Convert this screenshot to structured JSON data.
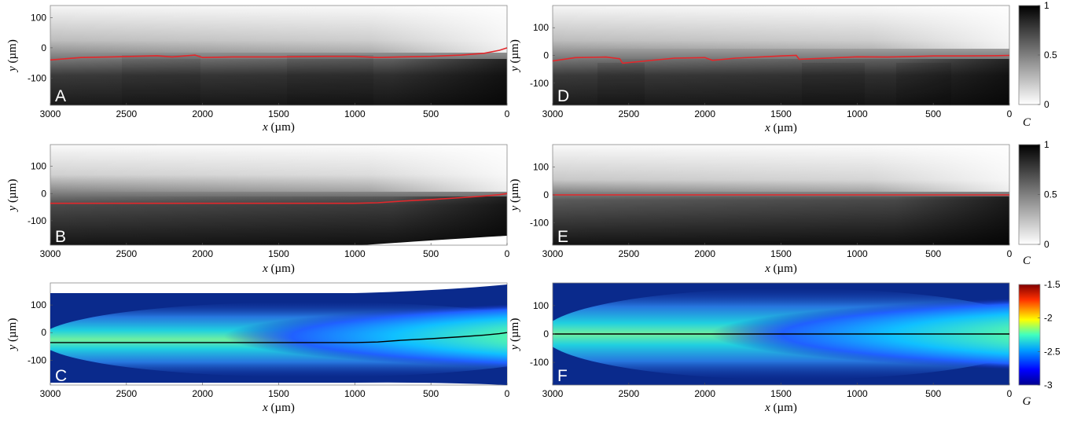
{
  "chart_data": [
    {
      "panel": "A",
      "type": "heatmap",
      "colormap": "gray",
      "xlabel_var": "x",
      "xlabel_unit": "(µm)",
      "ylabel_var": "y",
      "ylabel_unit": "(µm)",
      "xlim": [
        3000,
        0
      ],
      "ylim": [
        -190,
        140
      ],
      "xticks": [
        "3000",
        "2500",
        "2000",
        "1500",
        "1000",
        "500",
        "0"
      ],
      "yticks": [
        "100",
        "0",
        "-100"
      ],
      "curve_color": "#e3272b",
      "curve": {
        "x": [
          3000,
          2800,
          2600,
          2300,
          2200,
          2050,
          2000,
          1800,
          1500,
          1200,
          1000,
          850,
          700,
          500,
          300,
          150,
          50,
          0
        ],
        "y": [
          -40,
          -32,
          -30,
          -26,
          -30,
          -24,
          -32,
          -30,
          -30,
          -28,
          -28,
          -32,
          -30,
          -28,
          -24,
          -18,
          -8,
          0
        ]
      }
    },
    {
      "panel": "B",
      "type": "heatmap",
      "colormap": "gray",
      "xlabel_var": "x",
      "xlabel_unit": "(µm)",
      "ylabel_var": "y",
      "ylabel_unit": "(µm)",
      "xlim": [
        3000,
        0
      ],
      "ylim": [
        -190,
        180
      ],
      "xticks": [
        "3000",
        "2500",
        "2000",
        "1500",
        "1000",
        "500",
        "0"
      ],
      "yticks": [
        "100",
        "0",
        "-100"
      ],
      "curve_color": "#e3272b",
      "curve": {
        "x": [
          3000,
          2500,
          2000,
          1500,
          1000,
          850,
          700,
          500,
          300,
          150,
          50,
          0
        ],
        "y": [
          -36,
          -36,
          -36,
          -36,
          -36,
          -34,
          -28,
          -22,
          -15,
          -9,
          -4,
          0
        ]
      }
    },
    {
      "panel": "C",
      "type": "heatmap",
      "colormap": "jet",
      "xlabel_var": "x",
      "xlabel_unit": "(µm)",
      "ylabel_var": "y",
      "ylabel_unit": "(µm)",
      "xlim": [
        3000,
        0
      ],
      "ylim": [
        -190,
        180
      ],
      "xticks": [
        "3000",
        "2500",
        "2000",
        "1500",
        "1000",
        "500",
        "0"
      ],
      "yticks": [
        "100",
        "0",
        "-100"
      ],
      "curve_color": "#000000",
      "curve": {
        "x": [
          3000,
          2500,
          2000,
          1500,
          1000,
          850,
          700,
          500,
          300,
          150,
          50,
          0
        ],
        "y": [
          -36,
          -36,
          -36,
          -36,
          -36,
          -34,
          -28,
          -22,
          -15,
          -9,
          -4,
          0
        ]
      }
    },
    {
      "panel": "D",
      "type": "heatmap",
      "colormap": "gray",
      "xlabel_var": "x",
      "xlabel_unit": "(µm)",
      "ylabel_var": "y",
      "ylabel_unit": "(µm)",
      "xlim": [
        3000,
        0
      ],
      "ylim": [
        -180,
        180
      ],
      "xticks": [
        "3000",
        "2500",
        "2000",
        "1500",
        "1000",
        "500",
        "0"
      ],
      "yticks": [
        "100",
        "0",
        "-100"
      ],
      "curve_color": "#e3272b",
      "curve": {
        "x": [
          3000,
          2850,
          2650,
          2560,
          2540,
          2200,
          2000,
          1950,
          1800,
          1500,
          1400,
          1380,
          1000,
          800,
          500,
          300,
          100,
          0
        ],
        "y": [
          -20,
          -8,
          -6,
          -12,
          -28,
          -10,
          -8,
          -18,
          -10,
          -2,
          0,
          -14,
          -5,
          -6,
          -2,
          -2,
          -1,
          0
        ]
      }
    },
    {
      "panel": "E",
      "type": "heatmap",
      "colormap": "gray",
      "xlabel_var": "x",
      "xlabel_unit": "(µm)",
      "ylabel_var": "y",
      "ylabel_unit": "(µm)",
      "xlim": [
        3000,
        0
      ],
      "ylim": [
        -180,
        180
      ],
      "xticks": [
        "3000",
        "2500",
        "2000",
        "1500",
        "1000",
        "500",
        "0"
      ],
      "yticks": [
        "100",
        "0",
        "-100"
      ],
      "curve_color": "#e3272b",
      "curve": {
        "x": [
          3000,
          0
        ],
        "y": [
          0,
          0
        ]
      }
    },
    {
      "panel": "F",
      "type": "heatmap",
      "colormap": "jet",
      "xlabel_var": "x",
      "xlabel_unit": "(µm)",
      "ylabel_var": "y",
      "ylabel_unit": "(µm)",
      "xlim": [
        3000,
        0
      ],
      "ylim": [
        -180,
        180
      ],
      "xticks": [
        "3000",
        "2500",
        "2000",
        "1500",
        "1000",
        "500",
        "0"
      ],
      "yticks": [
        "100",
        "0",
        "-100"
      ],
      "curve_color": "#000000",
      "curve": {
        "x": [
          3000,
          0
        ],
        "y": [
          0,
          0
        ]
      }
    }
  ],
  "colorbars": [
    {
      "id": "cb-gray-1",
      "colormap": "gray",
      "range": [
        0,
        1
      ],
      "ticks": [
        "1",
        "0.5",
        "0"
      ],
      "label": "C"
    },
    {
      "id": "cb-gray-2",
      "colormap": "gray",
      "range": [
        0,
        1
      ],
      "ticks": [
        "1",
        "0.5",
        "0"
      ],
      "label": "C"
    },
    {
      "id": "cb-jet",
      "colormap": "jet",
      "range": [
        -3,
        -1.5
      ],
      "ticks": [
        "-1.5",
        "-2",
        "-2.5",
        "-3"
      ],
      "label": "G"
    }
  ],
  "colors": {
    "curve_red": "#e3272b",
    "jet_background": "#0a2a8c",
    "frame": "#8a8a8a"
  }
}
